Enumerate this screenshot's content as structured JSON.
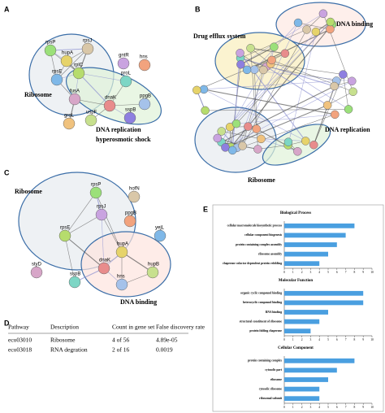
{
  "panels": {
    "A": {
      "label": "A",
      "nodes": [
        "rpsP",
        "rpsJ",
        "gntR",
        "hns",
        "rpsE",
        "rplC",
        "hupA",
        "fusA",
        "proL",
        "dnaK",
        "ppgB",
        "uspF",
        "groL",
        "sspB"
      ],
      "annotations": [
        "Ribosome",
        "DNA replication",
        "hyperosmotic shock"
      ]
    },
    "B": {
      "label": "B",
      "annotations": [
        "Drug efflux system",
        "DNA binding",
        "DNA replication",
        "Ribosome"
      ]
    },
    "C": {
      "label": "C",
      "nodes": [
        "rpsP",
        "hofN",
        "rpsJ",
        "ppgB",
        "yejL",
        "rpsE",
        "hupA",
        "styD",
        "sspB",
        "dnaK",
        "hns",
        "hupB"
      ],
      "annotations": [
        "Ribosome",
        "DNA binding"
      ]
    },
    "D": {
      "label": "D"
    },
    "E": {
      "label": "E"
    }
  },
  "table": {
    "header": [
      "Pathway",
      "Description",
      "Count in gene set",
      "False discovery rate"
    ],
    "rows": [
      [
        "eco03010",
        "Ribosome",
        "4 of 56",
        "4.89e-05"
      ],
      [
        "eco03018",
        "RNA degration",
        "2 of 16",
        "0.0019"
      ]
    ]
  },
  "chart_data": [
    {
      "type": "bar",
      "orientation": "horizontal",
      "title": "Biological Process",
      "categories": [
        "cellular macromolecule biosynthetic process",
        "cellular component biogenesis",
        "protein containing complex assembly",
        "ribosome assembly",
        "chaperone cofactor dependent protein refolding"
      ],
      "values": [
        8,
        7,
        6,
        5,
        4
      ],
      "color": "#4a9fe0",
      "xlim": [
        0,
        10
      ],
      "xticks": [
        0,
        1,
        2,
        3,
        4,
        5,
        6,
        7,
        8,
        9,
        10
      ]
    },
    {
      "type": "bar",
      "orientation": "horizontal",
      "title": "Molecular Function",
      "categories": [
        "organic cyclic compound binding",
        "heterocyclic compound binding",
        "RNA binding",
        "structural constituent of ribosome",
        "protein folding chaperone"
      ],
      "values": [
        9,
        9,
        5,
        4,
        3
      ],
      "color": "#4a9fe0",
      "xlim": [
        0,
        10
      ],
      "xticks": [
        0,
        1,
        2,
        3,
        4,
        5,
        6,
        7,
        8,
        9,
        10
      ]
    },
    {
      "type": "bar",
      "orientation": "horizontal",
      "title": "Cellular Component",
      "categories": [
        "protein containing complex",
        "cytosolic part",
        "ribosome",
        "cytosolic ribosome",
        "ribosomal subunit"
      ],
      "values": [
        8,
        6,
        5,
        4,
        4
      ],
      "color": "#4a9fe0",
      "xlim": [
        0,
        10
      ],
      "xticks": [
        0,
        1,
        2,
        3,
        4,
        5,
        6,
        7,
        8,
        9,
        10
      ]
    }
  ]
}
